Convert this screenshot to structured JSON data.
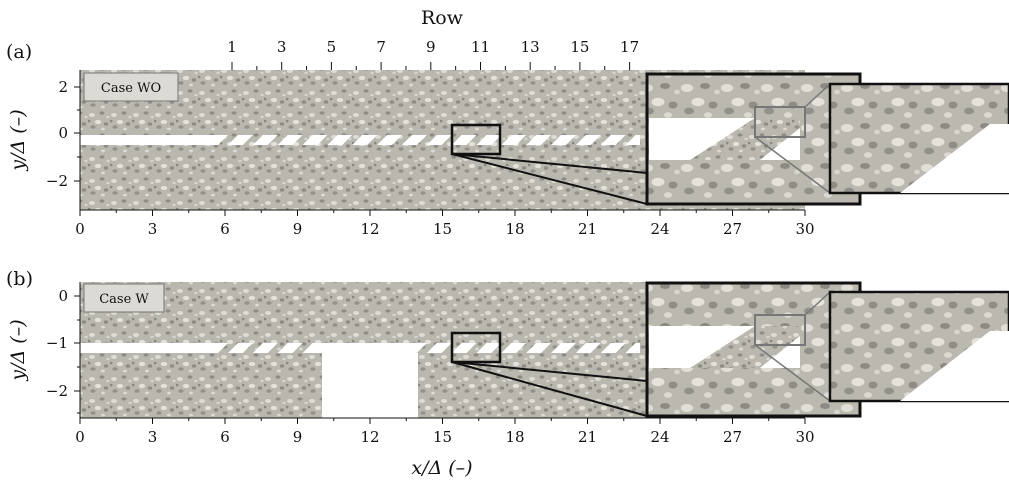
{
  "figure": {
    "top_axis_title": "Row",
    "row_ticks": [
      "1",
      "3",
      "5",
      "7",
      "9",
      "11",
      "13",
      "15",
      "17"
    ],
    "x_ticks": [
      "0",
      "3",
      "6",
      "9",
      "12",
      "15",
      "18",
      "21",
      "24",
      "27",
      "30"
    ],
    "x_axis_label": "x/Δ (–)",
    "y_axis_label": "y/Δ (–)",
    "panels": [
      {
        "label": "(a)",
        "case": "Case WO",
        "y_ticks": [
          "2",
          "0",
          "−2"
        ],
        "ylim": [
          -3.1,
          2.8
        ],
        "gap_x": null
      },
      {
        "label": "(b)",
        "case": "Case W",
        "y_ticks": [
          "0",
          "−1",
          "−2"
        ],
        "ylim": [
          -2.55,
          0.45
        ],
        "gap_x": [
          10,
          14
        ]
      }
    ],
    "xlim": [
      0,
      30
    ],
    "colors": {
      "texture_base": "#b9b7ae",
      "texture_dark": "#8e8c84",
      "texture_light": "#dedcd4",
      "inset_frame": "#111111",
      "zoom_frame": "#7a7a7a"
    }
  }
}
